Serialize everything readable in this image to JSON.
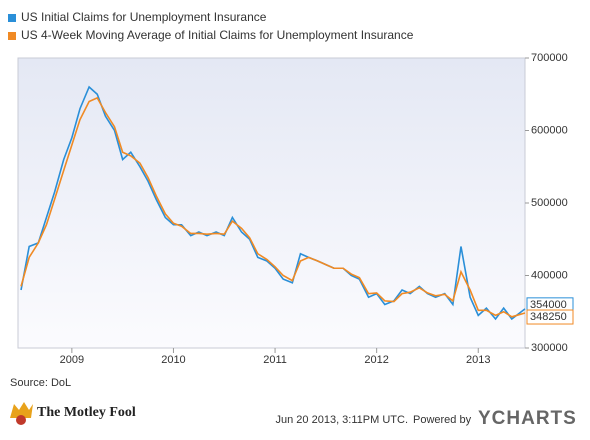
{
  "chart_data": {
    "type": "line",
    "x": [
      2008.5,
      2008.58,
      2008.67,
      2008.75,
      2008.83,
      2008.92,
      2009.0,
      2009.08,
      2009.17,
      2009.25,
      2009.33,
      2009.42,
      2009.5,
      2009.58,
      2009.67,
      2009.75,
      2009.83,
      2009.92,
      2010.0,
      2010.08,
      2010.17,
      2010.25,
      2010.33,
      2010.42,
      2010.5,
      2010.58,
      2010.67,
      2010.75,
      2010.83,
      2010.92,
      2011.0,
      2011.08,
      2011.17,
      2011.25,
      2011.33,
      2011.42,
      2011.5,
      2011.58,
      2011.67,
      2011.75,
      2011.83,
      2011.92,
      2012.0,
      2012.08,
      2012.17,
      2012.25,
      2012.33,
      2012.42,
      2012.5,
      2012.58,
      2012.67,
      2012.75,
      2012.83,
      2012.92,
      2013.0,
      2013.08,
      2013.17,
      2013.25,
      2013.33,
      2013.46
    ],
    "series": [
      {
        "name": "US Initial Claims for Unemployment Insurance",
        "color": "#2a8fd8",
        "values": [
          380000,
          440000,
          445000,
          480000,
          515000,
          560000,
          590000,
          630000,
          660000,
          650000,
          620000,
          600000,
          560000,
          570000,
          550000,
          530000,
          505000,
          480000,
          470000,
          470000,
          455000,
          460000,
          455000,
          460000,
          455000,
          480000,
          460000,
          450000,
          425000,
          420000,
          410000,
          395000,
          390000,
          430000,
          425000,
          420000,
          415000,
          410000,
          410000,
          400000,
          395000,
          370000,
          375000,
          360000,
          365000,
          380000,
          375000,
          385000,
          375000,
          370000,
          375000,
          360000,
          440000,
          370000,
          345000,
          355000,
          340000,
          355000,
          340000,
          354000
        ]
      },
      {
        "name": "US 4-Week Moving Average of Initial Claims for Unemployment Insurance",
        "color": "#f08a24",
        "values": [
          385000,
          425000,
          445000,
          470000,
          505000,
          545000,
          580000,
          615000,
          640000,
          645000,
          625000,
          605000,
          570000,
          565000,
          555000,
          535000,
          510000,
          485000,
          472000,
          468000,
          458000,
          458000,
          457000,
          458000,
          457000,
          475000,
          465000,
          452000,
          430000,
          422000,
          412000,
          400000,
          393000,
          420000,
          425000,
          420000,
          415000,
          410000,
          410000,
          402000,
          397000,
          375000,
          376000,
          365000,
          364000,
          375000,
          377000,
          383000,
          376000,
          372000,
          374000,
          365000,
          405000,
          380000,
          352000,
          352000,
          345000,
          350000,
          343000,
          348250
        ]
      }
    ],
    "xlim": [
      2008.47,
      2013.46
    ],
    "xticks": [
      2009,
      2010,
      2011,
      2012,
      2013
    ],
    "ylim": [
      300000,
      700000
    ],
    "yticks": [
      300000,
      400000,
      500000,
      600000,
      700000
    ],
    "source": "Source: DoL"
  },
  "footer": {
    "logo": "The Motley Fool",
    "timestamp": "Jun 20 2013, 3:11PM UTC.",
    "powered_by": "Powered by",
    "brand": "YCHARTS"
  }
}
